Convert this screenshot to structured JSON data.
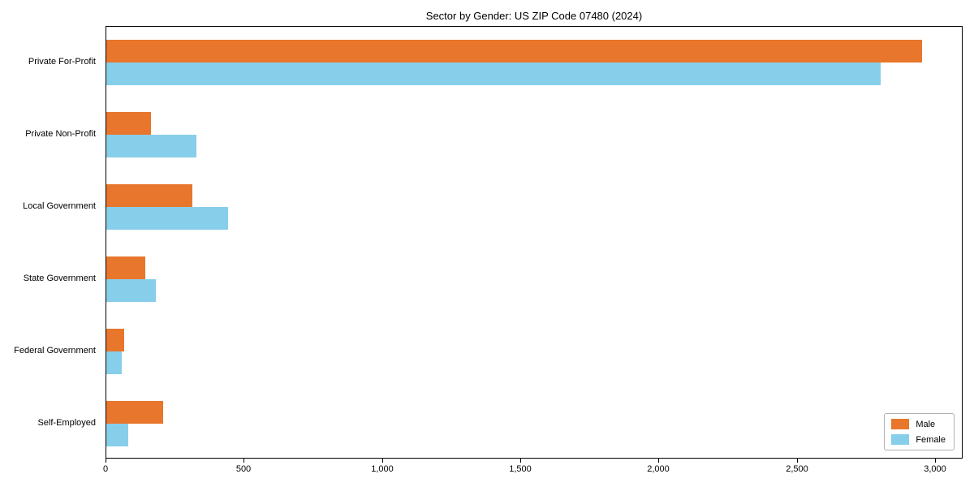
{
  "title": "Sector by Gender: US ZIP Code 07480 (2024)",
  "chart_data": {
    "type": "bar",
    "orientation": "horizontal",
    "title": "Sector by Gender: US ZIP Code 07480 (2024)",
    "categories": [
      "Private For-Profit",
      "Private Non-Profit",
      "Local Government",
      "State Government",
      "Federal Government",
      "Self-Employed"
    ],
    "series": [
      {
        "name": "Male",
        "color": "#E8762C",
        "values": [
          2950,
          160,
          310,
          140,
          65,
          205
        ]
      },
      {
        "name": "Female",
        "color": "#87CEEB",
        "values": [
          2800,
          325,
          440,
          180,
          55,
          80
        ]
      }
    ],
    "xlim": [
      0,
      3100
    ],
    "xticks": [
      0,
      500,
      1000,
      1500,
      2000,
      2500,
      3000
    ],
    "xtick_labels": [
      "0",
      "500",
      "1,000",
      "1,500",
      "2,000",
      "2,500",
      "3,000"
    ],
    "xlabel": "",
    "ylabel": "",
    "grid": false,
    "legend_position": "lower right"
  }
}
